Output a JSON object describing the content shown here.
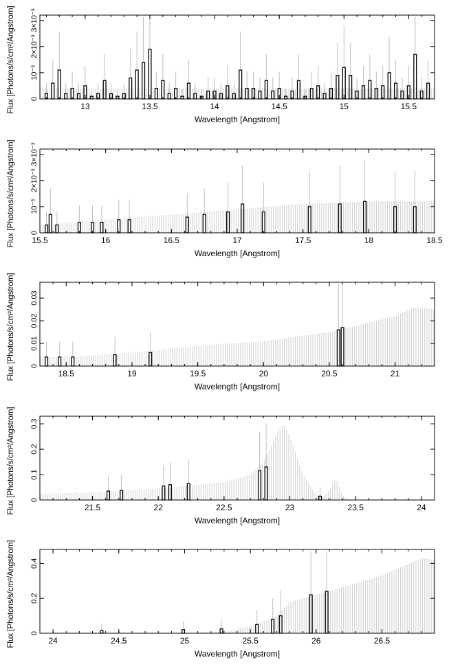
{
  "figure": {
    "title": "",
    "panel_count": 5
  },
  "colors": {
    "background": "#ffffff",
    "axis": "#000000",
    "model_fill": "#cfcfcf",
    "error_bars": "#bdbdbd",
    "data_line": "#000000"
  },
  "chart_data": [
    {
      "type": "line",
      "title": "",
      "xlabel": "Wavelength [Angstrom]",
      "ylabel": "Flux [Photons/s/cm²/Angstrom]",
      "xlim": [
        12.65,
        15.7
      ],
      "ylim": [
        0,
        0.0032
      ],
      "x_ticks": [
        13,
        13.5,
        14,
        14.5,
        15,
        15.5
      ],
      "x_tick_labels": [
        "13",
        "13.5",
        "14",
        "14.5",
        "15",
        "15.5"
      ],
      "y_ticks": [
        0,
        0.001,
        0.002,
        0.003
      ],
      "y_tick_labels": [
        "0",
        "10⁻³",
        "2×10⁻³",
        "3×10⁻³"
      ],
      "grid": false,
      "legend": "none",
      "series": [
        {
          "style": "model-fill",
          "x": [
            12.7,
            13.0,
            13.5,
            14.0,
            14.5,
            15.0,
            15.5,
            15.7
          ],
          "y": [
            0.0004,
            0.0004,
            0.0004,
            0.0004,
            0.0004,
            0.0004,
            0.0004,
            0.0004
          ]
        },
        {
          "style": "data-step",
          "x": [
            12.7,
            12.75,
            12.8,
            12.85,
            12.9,
            12.95,
            13.0,
            13.05,
            13.1,
            13.15,
            13.2,
            13.25,
            13.3,
            13.35,
            13.4,
            13.45,
            13.5,
            13.55,
            13.6,
            13.65,
            13.7,
            13.75,
            13.8,
            13.85,
            13.9,
            13.95,
            14.0,
            14.05,
            14.1,
            14.15,
            14.2,
            14.25,
            14.3,
            14.35,
            14.4,
            14.45,
            14.5,
            14.55,
            14.6,
            14.65,
            14.7,
            14.75,
            14.8,
            14.85,
            14.9,
            14.95,
            15.0,
            15.05,
            15.1,
            15.15,
            15.2,
            15.25,
            15.3,
            15.35,
            15.4,
            15.45,
            15.5,
            15.55,
            15.6,
            15.65
          ],
          "y": [
            0.0002,
            0.0006,
            0.0011,
            0.0002,
            0.0004,
            0.0002,
            0.0005,
            0.0001,
            0.0002,
            0.0007,
            0.0002,
            0.0001,
            0.0002,
            0.0008,
            0.0011,
            0.0014,
            0.0019,
            0.0004,
            0.0007,
            0.0002,
            0.0004,
            0.0001,
            0.0006,
            0.0002,
            0.0001,
            0.0003,
            0.0003,
            0.0002,
            0.0005,
            0.0002,
            0.0011,
            0.0004,
            0.0004,
            0.0003,
            0.0007,
            0.0003,
            0.0004,
            0.0001,
            0.0003,
            0.0007,
            0.0001,
            0.0004,
            0.0005,
            0.0002,
            0.0004,
            0.0009,
            0.0012,
            0.0009,
            0.0003,
            0.0005,
            0.0007,
            0.0004,
            0.0005,
            0.001,
            0.0006,
            0.0003,
            0.0005,
            0.0017,
            0.0003,
            0.0006
          ]
        }
      ]
    },
    {
      "type": "line",
      "title": "",
      "xlabel": "Wavelength [Angstrom]",
      "ylabel": "Flux [Photons/s/cm²/Angstrom]",
      "xlim": [
        15.5,
        18.5
      ],
      "ylim": [
        0,
        0.0032
      ],
      "x_ticks": [
        15.5,
        16,
        16.5,
        17,
        17.5,
        18,
        18.5
      ],
      "x_tick_labels": [
        "15.5",
        "16",
        "16.5",
        "17",
        "17.5",
        "18",
        "18.5"
      ],
      "y_ticks": [
        0,
        0.001,
        0.002,
        0.003
      ],
      "y_tick_labels": [
        "0",
        "10⁻³",
        "2×10⁻³",
        "3×10⁻³"
      ],
      "grid": false,
      "legend": "none",
      "series": [
        {
          "style": "model-fill",
          "x": [
            15.5,
            16.0,
            16.5,
            17.0,
            17.5,
            18.0,
            18.5
          ],
          "y": [
            0.0003,
            0.0005,
            0.0007,
            0.0009,
            0.0011,
            0.0012,
            0.0012
          ]
        },
        {
          "style": "data-step",
          "x": [
            15.55,
            15.58,
            15.63,
            15.8,
            15.9,
            15.97,
            16.1,
            16.18,
            16.62,
            16.75,
            16.93,
            17.04,
            17.2,
            17.55,
            17.78,
            17.97,
            18.2,
            18.35
          ],
          "y": [
            0.0003,
            0.0007,
            0.0003,
            0.0004,
            0.0004,
            0.0004,
            0.0005,
            0.0005,
            0.0006,
            0.0007,
            0.0008,
            0.0011,
            0.0008,
            0.001,
            0.0011,
            0.0012,
            0.001,
            0.001
          ]
        }
      ]
    },
    {
      "type": "line",
      "title": "",
      "xlabel": "Wavelength [Angstrom]",
      "ylabel": "Flux [Photons/s/cm²/Angstrom]",
      "xlim": [
        18.3,
        21.3
      ],
      "ylim": [
        0,
        0.037
      ],
      "x_ticks": [
        18.5,
        19,
        19.5,
        20,
        20.5,
        21
      ],
      "x_tick_labels": [
        "18.5",
        "19",
        "19.5",
        "20",
        "20.5",
        "21"
      ],
      "y_ticks": [
        0,
        0.01,
        0.02,
        0.03
      ],
      "y_tick_labels": [
        "0",
        "0.01",
        "0.02",
        "0.03"
      ],
      "grid": false,
      "legend": "none",
      "series": [
        {
          "style": "model-fill",
          "x": [
            18.3,
            18.5,
            19.0,
            19.5,
            20.0,
            20.5,
            21.0,
            21.15,
            21.3
          ],
          "y": [
            0.004,
            0.004,
            0.006,
            0.009,
            0.011,
            0.015,
            0.022,
            0.026,
            0.025
          ]
        },
        {
          "style": "data-step",
          "x": [
            18.35,
            18.45,
            18.55,
            18.87,
            19.14,
            20.57,
            20.6
          ],
          "y": [
            0.004,
            0.004,
            0.004,
            0.005,
            0.006,
            0.016,
            0.017
          ]
        }
      ]
    },
    {
      "type": "line",
      "title": "",
      "xlabel": "Wavelength [Angstrom]",
      "ylabel": "Flux [Photons/s/cm²/Angstrom]",
      "xlim": [
        21.1,
        24.1
      ],
      "ylim": [
        0,
        0.33
      ],
      "x_ticks": [
        21.5,
        22,
        22.5,
        23,
        23.5,
        24
      ],
      "x_tick_labels": [
        "21.5",
        "22",
        "22.5",
        "23",
        "23.5",
        "24"
      ],
      "y_ticks": [
        0,
        0.1,
        0.2,
        0.3
      ],
      "y_tick_labels": [
        "0",
        "0.1",
        "0.2",
        "0.3"
      ],
      "grid": false,
      "legend": "none",
      "series": [
        {
          "style": "model-fill",
          "x": [
            21.1,
            21.5,
            22.0,
            22.5,
            22.7,
            22.8,
            22.9,
            22.95,
            23.0,
            23.1,
            23.2,
            23.25,
            23.3,
            23.35,
            23.4,
            23.45,
            24.1
          ],
          "y": [
            0.025,
            0.03,
            0.045,
            0.07,
            0.1,
            0.15,
            0.26,
            0.3,
            0.25,
            0.1,
            0.02,
            0.01,
            0.04,
            0.085,
            0.02,
            0.0,
            0.0
          ]
        },
        {
          "style": "data-step",
          "x": [
            21.62,
            21.72,
            22.04,
            22.09,
            22.23,
            22.77,
            22.82,
            23.23
          ],
          "y": [
            0.035,
            0.038,
            0.055,
            0.06,
            0.065,
            0.115,
            0.13,
            0.015
          ]
        }
      ]
    },
    {
      "type": "line",
      "title": "",
      "xlabel": "Wavelength [Angstrom]",
      "ylabel": "Flux [Photons/s/cm²/Angstrom]",
      "xlim": [
        23.9,
        26.9
      ],
      "ylim": [
        0,
        0.48
      ],
      "x_ticks": [
        24,
        24.5,
        25,
        25.5,
        26,
        26.5
      ],
      "x_tick_labels": [
        "24",
        "24.5",
        "25",
        "25.5",
        "26",
        "26.5"
      ],
      "y_ticks": [
        0,
        0.2,
        0.4
      ],
      "y_tick_labels": [
        "0",
        "0.2",
        "0.4"
      ],
      "grid": false,
      "legend": "none",
      "series": [
        {
          "style": "model-fill",
          "x": [
            23.9,
            25.0,
            25.3,
            25.5,
            25.7,
            25.8,
            26.0,
            26.5,
            26.8,
            26.9
          ],
          "y": [
            0.0,
            0.0,
            0.01,
            0.04,
            0.1,
            0.18,
            0.22,
            0.33,
            0.43,
            0.42
          ]
        },
        {
          "style": "data-step",
          "x": [
            24.37,
            24.99,
            25.28,
            25.55,
            25.67,
            25.73,
            25.96,
            26.08
          ],
          "y": [
            0.015,
            0.02,
            0.025,
            0.05,
            0.08,
            0.1,
            0.22,
            0.24
          ]
        }
      ]
    }
  ]
}
